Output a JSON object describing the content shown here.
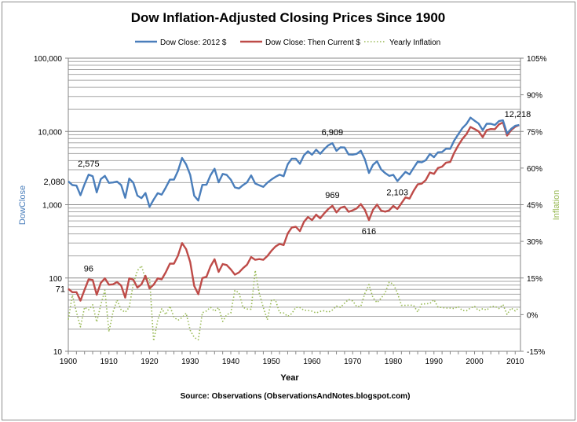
{
  "chart_data": {
    "type": "line",
    "title": "Dow Inflation-Adjusted Closing Prices Since 1900",
    "xlabel": "Year",
    "ylabel": "DowClose",
    "y2label": "Inflation",
    "source": "Source: Observations (ObservationsAndNotes.blogspot.com)",
    "xlim": [
      1900,
      2011
    ],
    "ylim": [
      10,
      100000
    ],
    "yscale": "log",
    "y2lim": [
      -15,
      110
    ],
    "grid": true,
    "legend_position": "top",
    "x_ticks": [
      "1900",
      "1910",
      "1920",
      "1930",
      "1940",
      "1950",
      "1960",
      "1970",
      "1980",
      "1990",
      "2000",
      "2010"
    ],
    "y_ticks": [
      "10",
      "100",
      "1,000",
      "10,000",
      "100,000"
    ],
    "y2_ticks": [
      "-15%",
      "0%",
      "15%",
      "30%",
      "45%",
      "60%",
      "75%",
      "90%",
      "105%"
    ],
    "x": [
      1900,
      1901,
      1902,
      1903,
      1904,
      1905,
      1906,
      1907,
      1908,
      1909,
      1910,
      1911,
      1912,
      1913,
      1914,
      1915,
      1916,
      1917,
      1918,
      1919,
      1920,
      1921,
      1922,
      1923,
      1924,
      1925,
      1926,
      1927,
      1928,
      1929,
      1930,
      1931,
      1932,
      1933,
      1934,
      1935,
      1936,
      1937,
      1938,
      1939,
      1940,
      1941,
      1942,
      1943,
      1944,
      1945,
      1946,
      1947,
      1948,
      1949,
      1950,
      1951,
      1952,
      1953,
      1954,
      1955,
      1956,
      1957,
      1958,
      1959,
      1960,
      1961,
      1962,
      1963,
      1964,
      1965,
      1966,
      1967,
      1968,
      1969,
      1970,
      1971,
      1972,
      1973,
      1974,
      1975,
      1976,
      1977,
      1978,
      1979,
      1980,
      1981,
      1982,
      1983,
      1984,
      1985,
      1986,
      1987,
      1988,
      1989,
      1990,
      1991,
      1992,
      1993,
      1994,
      1995,
      1996,
      1997,
      1998,
      1999,
      2000,
      2001,
      2002,
      2003,
      2004,
      2005,
      2006,
      2007,
      2008,
      2009,
      2010,
      2011
    ],
    "series": [
      {
        "name": "Dow Close: 2012 $",
        "color": "#4a7ebb",
        "style": "solid",
        "axis": "left",
        "values": [
          2080,
          1856,
          1824,
          1348,
          1898,
          2575,
          2444,
          1475,
          2236,
          2475,
          1985,
          2009,
          2068,
          1857,
          1242,
          2277,
          1995,
          1332,
          1230,
          1445,
          936,
          1175,
          1436,
          1373,
          1716,
          2198,
          2198,
          2889,
          4350,
          3546,
          2558,
          1326,
          1140,
          1870,
          1872,
          2520,
          3096,
          2021,
          2635,
          2550,
          2201,
          1721,
          1666,
          1850,
          2022,
          2509,
          1947,
          1846,
          1752,
          2000,
          2209,
          2394,
          2570,
          2445,
          3555,
          4246,
          4250,
          3619,
          4730,
          5364,
          4805,
          5629,
          4955,
          5723,
          6468,
          6909,
          5423,
          6064,
          6042,
          4840,
          4824,
          4945,
          5457,
          4170,
          2710,
          3493,
          3920,
          3033,
          2697,
          2475,
          2555,
          2103,
          2429,
          2808,
          2594,
          3187,
          3868,
          3781,
          4056,
          4928,
          4451,
          5197,
          5249,
          5819,
          5789,
          7522,
          9156,
          11071,
          12670,
          15406,
          14023,
          12827,
          10428,
          12754,
          12724,
          12219,
          13834,
          14194,
          9390,
          10845,
          11925,
          12218
        ]
      },
      {
        "name": "Dow Close: Then Current $",
        "color": "#be4b48",
        "style": "solid",
        "axis": "left",
        "values": [
          71,
          64,
          64,
          49,
          69,
          96,
          94,
          59,
          86,
          99,
          81,
          82,
          88,
          79,
          54,
          99,
          95,
          74,
          82,
          107,
          72,
          81,
          99,
          96,
          120,
          157,
          157,
          202,
          300,
          248,
          165,
          78,
          60,
          100,
          104,
          144,
          180,
          121,
          155,
          150,
          131,
          111,
          119,
          136,
          152,
          193,
          177,
          181,
          177,
          200,
          235,
          269,
          292,
          281,
          404,
          488,
          500,
          436,
          584,
          679,
          616,
          731,
          652,
          763,
          874,
          969,
          786,
          905,
          944,
          800,
          839,
          891,
          1020,
          851,
          616,
          852,
          1005,
          831,
          805,
          839,
          964,
          875,
          1047,
          1259,
          1212,
          1547,
          1896,
          1939,
          2169,
          2753,
          2634,
          3169,
          3301,
          3754,
          3834,
          5117,
          6448,
          7908,
          9181,
          11497,
          10787,
          10021,
          8342,
          10454,
          10783,
          10718,
          12463,
          13265,
          8776,
          10428,
          11578,
          12218
        ]
      },
      {
        "name": "Yearly Inflation",
        "color": "#98b954",
        "style": "dotted",
        "axis": "right",
        "values": [
          -2,
          8,
          1,
          -5,
          3,
          2,
          4,
          -3,
          4,
          10,
          -7,
          1,
          6,
          2,
          1,
          3,
          12.6,
          18,
          20,
          14.5,
          15,
          -10.8,
          -2.3,
          2.4,
          0,
          3.5,
          -1.1,
          -2.3,
          -1.2,
          0.6,
          -6.4,
          -9.3,
          -10.3,
          0.8,
          1.5,
          3,
          1.4,
          2.9,
          -2.8,
          0,
          0.7,
          9.9,
          9,
          3,
          2.3,
          2.2,
          18.1,
          8.8,
          3,
          -2.1,
          5.9,
          6,
          0.8,
          0.7,
          -0.7,
          0.4,
          3,
          2.9,
          1.8,
          1.7,
          1.4,
          0.7,
          1.3,
          1.6,
          1,
          1.9,
          3.5,
          3,
          4.7,
          6.2,
          5.6,
          3.3,
          3.4,
          8.7,
          12.3,
          6.9,
          4.9,
          6.7,
          9,
          13.3,
          12.5,
          8.9,
          3.8,
          3.8,
          3.9,
          3.8,
          1.1,
          4.4,
          4.4,
          4.6,
          6.1,
          3.1,
          2.9,
          2.7,
          2.7,
          2.5,
          3.3,
          1.7,
          1.6,
          2.7,
          3.4,
          1.6,
          2.4,
          1.9,
          3.3,
          3.4,
          2.5,
          4.1,
          0.1,
          2.7,
          1.5,
          3.0
        ]
      }
    ],
    "data_labels": [
      {
        "series": 0,
        "x": 1900,
        "text": "2,080",
        "pos": "left"
      },
      {
        "series": 0,
        "x": 1905,
        "text": "2,575",
        "pos": "above"
      },
      {
        "series": 0,
        "x": 1965,
        "text": "6,909",
        "pos": "above"
      },
      {
        "series": 0,
        "x": 1981,
        "text": "2,103",
        "pos": "below"
      },
      {
        "series": 0,
        "x": 2011,
        "text": "12,218",
        "pos": "above"
      },
      {
        "series": 1,
        "x": 1900,
        "text": "71",
        "pos": "left"
      },
      {
        "series": 1,
        "x": 1905,
        "text": "96",
        "pos": "above"
      },
      {
        "series": 1,
        "x": 1965,
        "text": "969",
        "pos": "above"
      },
      {
        "series": 1,
        "x": 1974,
        "text": "616",
        "pos": "below"
      }
    ]
  }
}
